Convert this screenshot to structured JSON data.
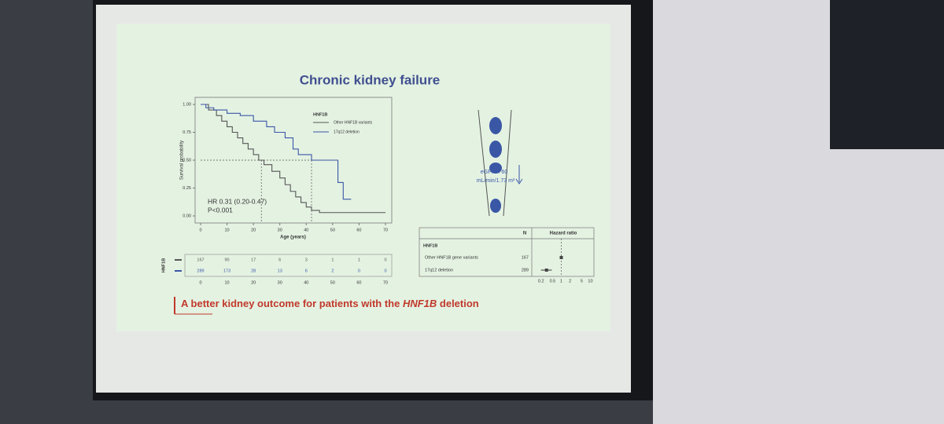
{
  "slide": {
    "title": "Chronic kidney failure",
    "conclusion": {
      "text": "A better kidney outcome for patients with the ",
      "emphasis": "HNF1B",
      "text_end": " deletion"
    }
  },
  "chart_data": {
    "type": "line",
    "step": true,
    "ylabel": "Survival probability",
    "xlabel": "Age (years)",
    "legend_title": "HNF1B",
    "series": [
      {
        "name": "Other HNF1B variants",
        "color": "#555555",
        "x": [
          0,
          3,
          6,
          8,
          10,
          12,
          14,
          16,
          18,
          20,
          22,
          24,
          27,
          30,
          32,
          34,
          36,
          38,
          40,
          42,
          45,
          70
        ],
        "values": [
          1,
          0.95,
          0.9,
          0.85,
          0.8,
          0.75,
          0.7,
          0.65,
          0.6,
          0.55,
          0.5,
          0.46,
          0.4,
          0.34,
          0.28,
          0.22,
          0.17,
          0.12,
          0.08,
          0.05,
          0.03,
          0.03
        ]
      },
      {
        "name": "17q12 deletion",
        "color": "#3a57a6",
        "x": [
          0,
          2,
          5,
          10,
          15,
          20,
          25,
          28,
          32,
          35,
          37,
          42,
          52,
          54,
          57
        ],
        "values": [
          1,
          0.97,
          0.95,
          0.92,
          0.9,
          0.85,
          0.8,
          0.75,
          0.7,
          0.6,
          0.55,
          0.5,
          0.3,
          0.15,
          0.15
        ]
      }
    ],
    "xlim": [
      0,
      70
    ],
    "xticks": [
      0,
      10,
      20,
      30,
      40,
      50,
      60,
      70
    ],
    "ylim": [
      0,
      1
    ],
    "yticks": [
      {
        "value": 0,
        "label": "0.00"
      },
      {
        "value": 0.25,
        "label": "0.25"
      },
      {
        "value": 0.5,
        "label": "0.50"
      },
      {
        "value": 0.75,
        "label": "0.75"
      },
      {
        "value": 1,
        "label": "1.00"
      }
    ],
    "median_level": 0.5,
    "medians": [
      23,
      42
    ],
    "annotations": [
      "HR 0.31 (0.20-0.47)",
      "P<0.001"
    ]
  },
  "risk_table": {
    "label": "HNF1B",
    "rows": [
      [
        167,
        90,
        17,
        6,
        3,
        1,
        1,
        0
      ],
      [
        289,
        173,
        28,
        13,
        6,
        2,
        0,
        0
      ]
    ],
    "ticks": [
      0,
      10,
      20,
      30,
      40,
      50,
      60,
      70
    ]
  },
  "diagram": {
    "label1": "eGFR < 60",
    "label2": "mL/min/1.73 m²"
  },
  "forest": {
    "type": "forest",
    "header_n": "N",
    "header_hr": "Hazard ratio",
    "group": "HNF1B",
    "rows": [
      {
        "label": "Other HNF1B gene variants",
        "n": 167,
        "hr": 1
      },
      {
        "label": "17q12 deletion",
        "n": 289,
        "hr": 0.31,
        "ci": [
          0.2,
          0.47
        ]
      }
    ],
    "log": true,
    "reference": 1,
    "xlim": [
      0.18,
      11
    ],
    "xticks": [
      0.2,
      0.5,
      1,
      2,
      5,
      10
    ]
  }
}
